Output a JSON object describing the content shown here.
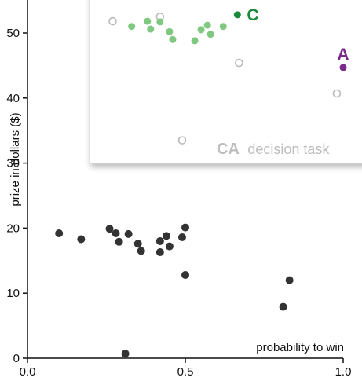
{
  "chart_data": {
    "type": "scatter",
    "xlabel": "probability to win",
    "ylabel": "prize in dollars ($)",
    "xlim": [
      0,
      1
    ],
    "ylim": [
      0,
      55
    ],
    "x_ticks": [
      "0.0",
      "0.5",
      "1.0"
    ],
    "y_ticks": [
      "0",
      "10",
      "20",
      "30",
      "40",
      "50"
    ],
    "grid": false,
    "colors": {
      "main_points": "#333333",
      "inset_gray": "#bbbbbb",
      "inset_green_light": "#7fc87f",
      "inset_green_dark": "#1a8a3a",
      "inset_purple": "#7a2a8a"
    },
    "main_points": [
      {
        "x": 0.1,
        "y": 19.2
      },
      {
        "x": 0.17,
        "y": 18.3
      },
      {
        "x": 0.26,
        "y": 19.9
      },
      {
        "x": 0.28,
        "y": 19.2
      },
      {
        "x": 0.29,
        "y": 17.9
      },
      {
        "x": 0.32,
        "y": 19.1
      },
      {
        "x": 0.35,
        "y": 17.6
      },
      {
        "x": 0.36,
        "y": 16.5
      },
      {
        "x": 0.42,
        "y": 18.0
      },
      {
        "x": 0.42,
        "y": 16.3
      },
      {
        "x": 0.44,
        "y": 18.8
      },
      {
        "x": 0.45,
        "y": 17.2
      },
      {
        "x": 0.49,
        "y": 18.6
      },
      {
        "x": 0.5,
        "y": 20.1
      },
      {
        "x": 0.5,
        "y": 12.8
      },
      {
        "x": 0.31,
        "y": 0.7
      },
      {
        "x": 0.81,
        "y": 7.9
      },
      {
        "x": 0.83,
        "y": 12.0
      }
    ],
    "inset": {
      "title_strong": "CA",
      "title_rest": "decision task",
      "gray_open_points": [
        {
          "x": 0.27,
          "y": 51.8
        },
        {
          "x": 0.42,
          "y": 52.5
        },
        {
          "x": 0.49,
          "y": 33.5
        },
        {
          "x": 0.67,
          "y": 45.4
        },
        {
          "x": 0.98,
          "y": 40.7
        }
      ],
      "green_points": [
        {
          "x": 0.33,
          "y": 51.0
        },
        {
          "x": 0.38,
          "y": 51.8
        },
        {
          "x": 0.39,
          "y": 50.6
        },
        {
          "x": 0.42,
          "y": 51.7
        },
        {
          "x": 0.45,
          "y": 50.2
        },
        {
          "x": 0.46,
          "y": 49.0
        },
        {
          "x": 0.53,
          "y": 48.8
        },
        {
          "x": 0.55,
          "y": 50.5
        },
        {
          "x": 0.57,
          "y": 51.2
        },
        {
          "x": 0.58,
          "y": 49.8
        },
        {
          "x": 0.62,
          "y": 51.0
        }
      ],
      "marker_C": {
        "label": "C",
        "x": 0.665,
        "y": 52.8
      },
      "marker_A": {
        "label": "A",
        "x": 1.0,
        "y": 44.7
      }
    }
  }
}
